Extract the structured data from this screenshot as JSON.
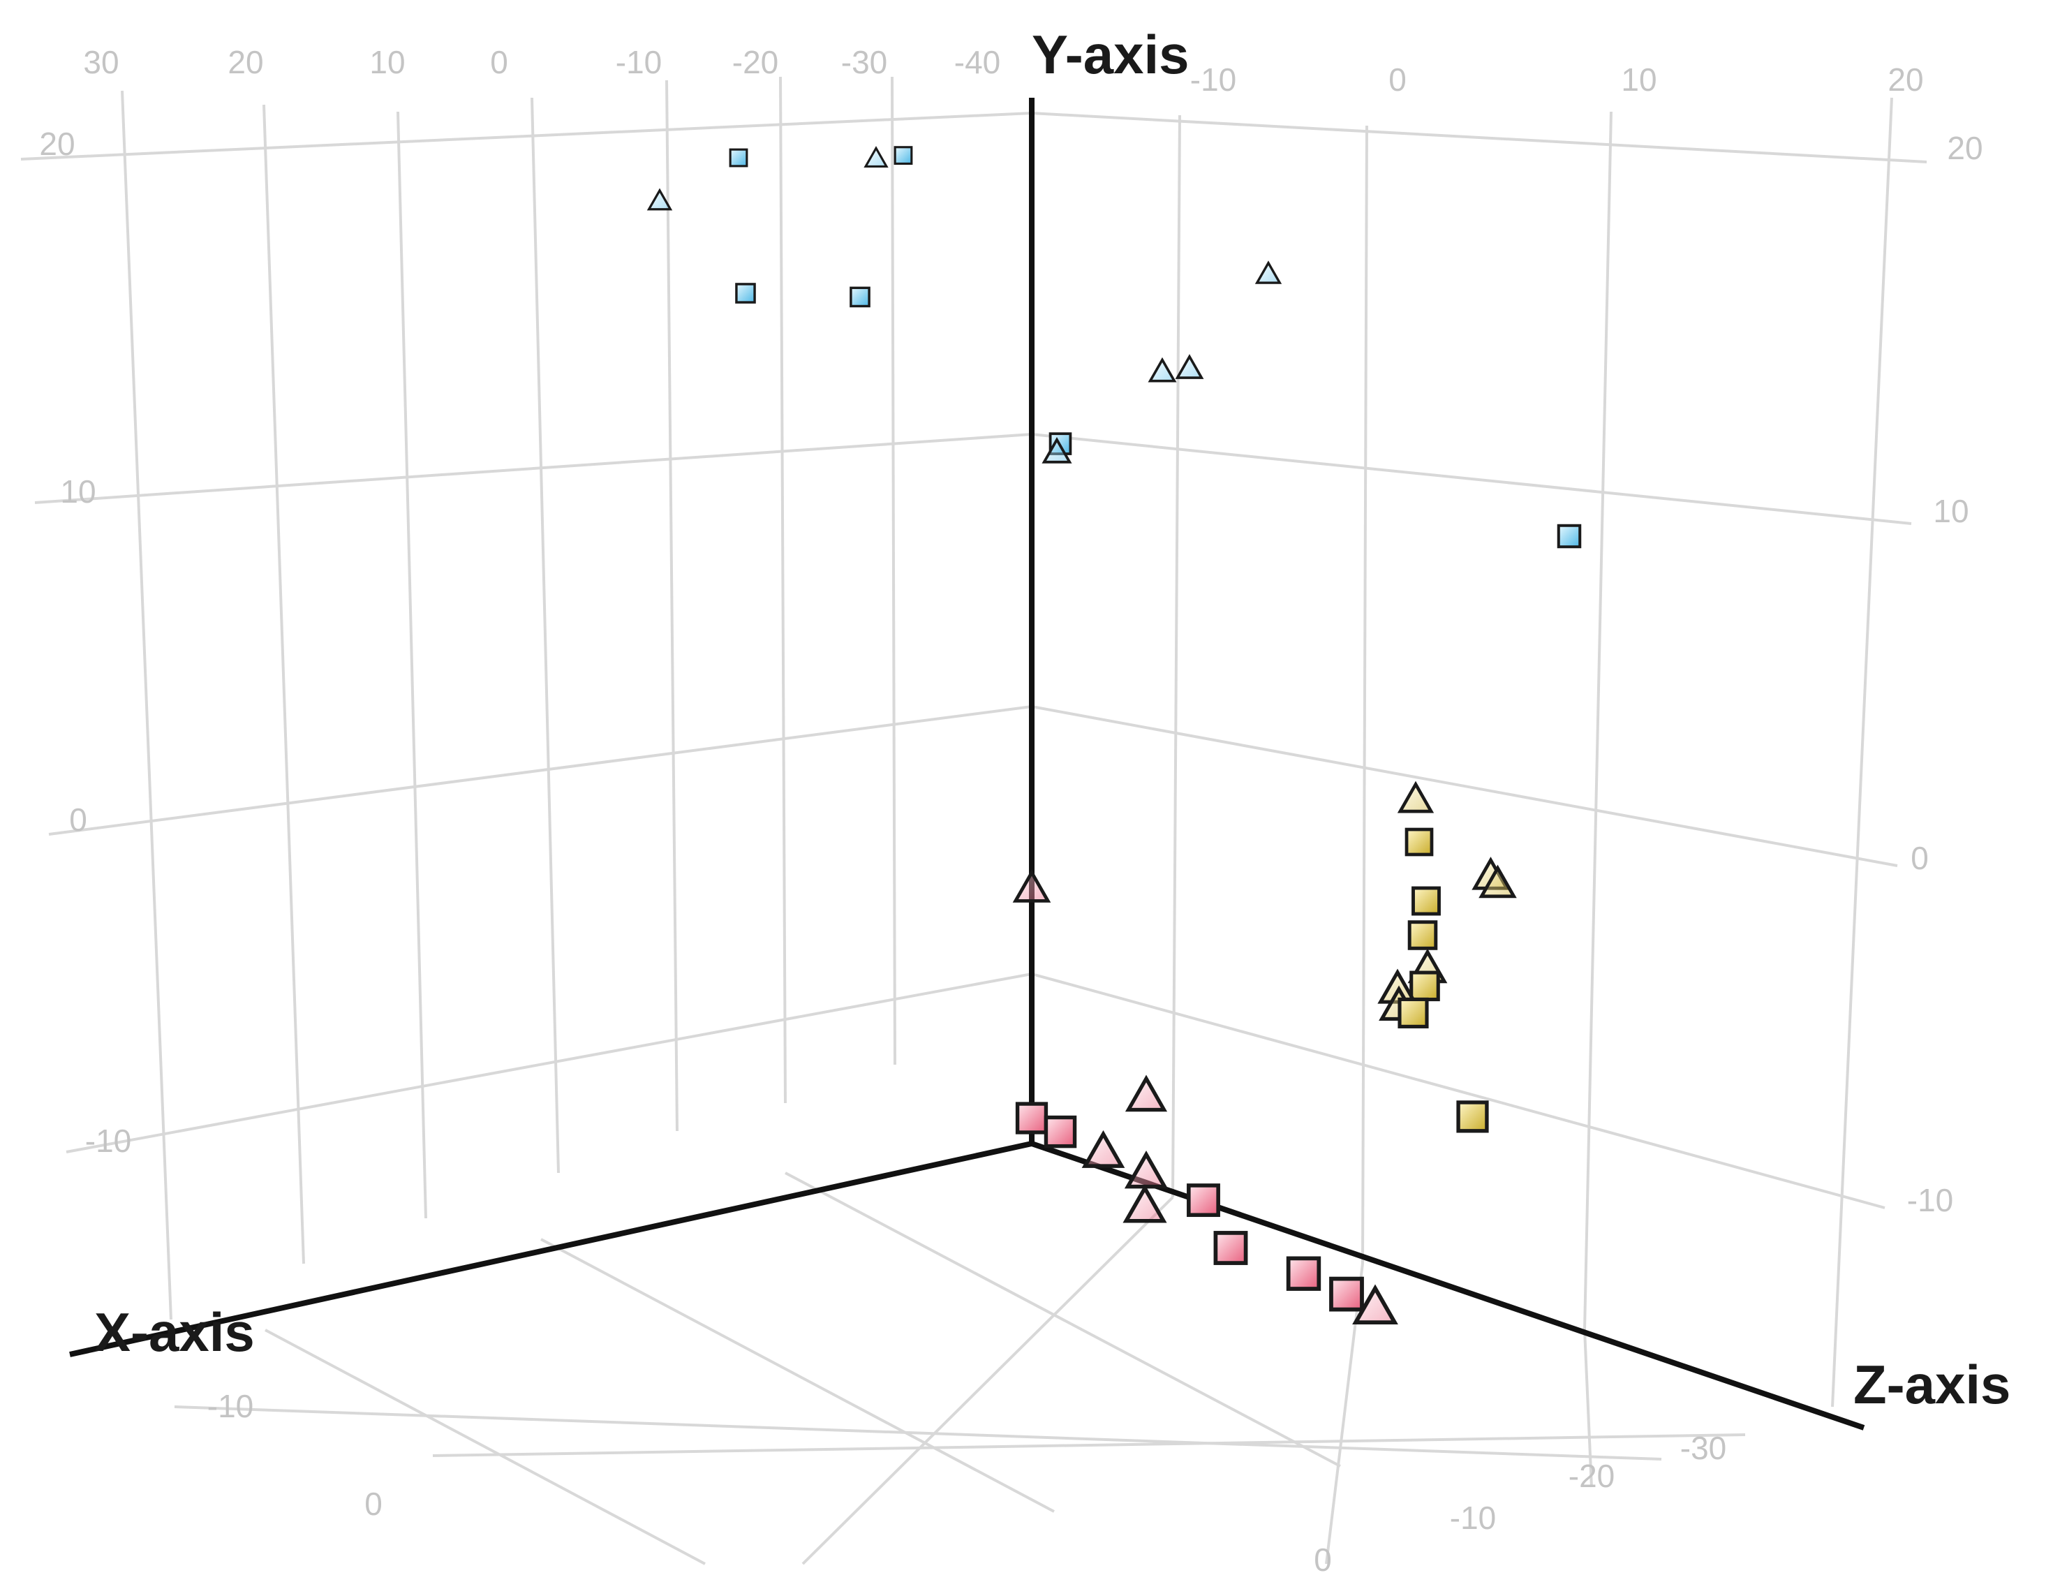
{
  "chart_data": {
    "type": "scatter",
    "projection": "3d",
    "title": "",
    "xlabel": "X-axis",
    "ylabel": "Y-axis",
    "zlabel": "Z-axis",
    "x_ticks": [
      "30",
      "20",
      "10",
      "0",
      "-10",
      "-20",
      "-30",
      "-40"
    ],
    "z_ticks": [
      "-10",
      "0",
      "10",
      "20"
    ],
    "y_ticks_left": [
      "20",
      "10",
      "0",
      "-10"
    ],
    "y_ticks_right": [
      "20",
      "10",
      "0",
      "-10"
    ],
    "floor_x_ticks": [
      "-10",
      "0"
    ],
    "floor_z_ticks": [
      "-30",
      "-20",
      "-10",
      "0"
    ],
    "grid": true,
    "colors": {
      "cyan": "#7fd1f2",
      "red": "#f28aa0",
      "yellow": "#e8d25a",
      "edge": "#1a1a1a"
    },
    "series": [
      {
        "color": "cyan",
        "marker": "square",
        "points": [
          {
            "x": -20,
            "y": 20,
            "z": -28
          },
          {
            "x": -30,
            "y": 20,
            "z": -30
          },
          {
            "x": -40,
            "y": 20,
            "z": -12
          },
          {
            "x": -40,
            "y": 18,
            "z": -20
          },
          {
            "x": -40,
            "y": 18,
            "z": 2
          },
          {
            "x": 10,
            "y": 8,
            "z": -10
          }
        ]
      },
      {
        "color": "cyan",
        "marker": "triangle",
        "points": [
          {
            "x": -22,
            "y": 20,
            "z": -28
          },
          {
            "x": -40,
            "y": 20,
            "z": -26
          },
          {
            "x": -10,
            "y": 19,
            "z": -12
          },
          {
            "x": -20,
            "y": 17,
            "z": -8
          },
          {
            "x": -22,
            "y": 17,
            "z": -8
          },
          {
            "x": -35,
            "y": 16,
            "z": -3
          }
        ]
      },
      {
        "color": "red",
        "marker": "square",
        "points": [
          {
            "x": -40,
            "y": -9,
            "z": 0
          },
          {
            "x": -40,
            "y": -9,
            "z": 2
          },
          {
            "x": -40,
            "y": -9,
            "z": 12
          },
          {
            "x": -38,
            "y": -11,
            "z": 12
          },
          {
            "x": -40,
            "y": -10,
            "z": 19
          },
          {
            "x": -40,
            "y": -10,
            "z": 22
          }
        ]
      },
      {
        "color": "red",
        "marker": "triangle",
        "points": [
          {
            "x": -40,
            "y": 0,
            "z": 0
          },
          {
            "x": -40,
            "y": -6,
            "z": 8
          },
          {
            "x": -40,
            "y": -9,
            "z": 5
          },
          {
            "x": -40,
            "y": -9,
            "z": 8
          },
          {
            "x": -38,
            "y": -11,
            "z": 6
          },
          {
            "x": -40,
            "y": -10,
            "z": 24
          }
        ]
      },
      {
        "color": "yellow",
        "marker": "square",
        "points": [
          {
            "x": 10,
            "y": -9,
            "z": -20
          },
          {
            "x": 20,
            "y": -10,
            "z": -30
          },
          {
            "x": 15,
            "y": -12,
            "z": -25
          },
          {
            "x": 12,
            "y": -13,
            "z": -22
          },
          {
            "x": 8,
            "y": -13,
            "z": -19
          },
          {
            "x": 5,
            "y": -15,
            "z": -12
          }
        ]
      },
      {
        "color": "yellow",
        "marker": "triangle",
        "points": [
          {
            "x": 10,
            "y": -7,
            "z": -15
          },
          {
            "x": 25,
            "y": -10,
            "z": -35
          },
          {
            "x": 20,
            "y": -10,
            "z": -25
          },
          {
            "x": 8,
            "y": -11,
            "z": -18
          },
          {
            "x": 10,
            "y": -13,
            "z": -22
          },
          {
            "x": 8,
            "y": -13,
            "z": -20
          }
        ]
      }
    ]
  }
}
